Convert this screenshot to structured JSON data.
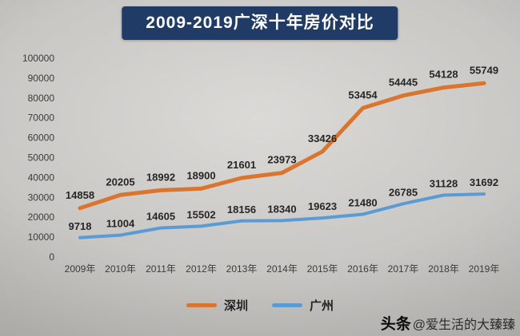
{
  "title": "2009-2019广深十年房价对比",
  "chart_data": {
    "type": "line",
    "title": "2009-2019广深十年房价对比",
    "categories": [
      "2009年",
      "2010年",
      "2011年",
      "2012年",
      "2013年",
      "2014年",
      "2015年",
      "2016年",
      "2017年",
      "2018年",
      "2019年"
    ],
    "series": [
      {
        "name": "深圳",
        "color": "#d9752f",
        "values": [
          14858,
          20205,
          18992,
          18900,
          21601,
          23973,
          33426,
          53454,
          54445,
          54128,
          55749
        ]
      },
      {
        "name": "广州",
        "color": "#5b9bd5",
        "values": [
          9718,
          11004,
          14605,
          15502,
          18156,
          18340,
          19623,
          21480,
          26785,
          31128,
          31692
        ]
      }
    ],
    "xlabel": "",
    "ylabel": "",
    "ylim": [
      0,
      100000
    ],
    "ytick_step": 10000,
    "grid": false,
    "stacked": true,
    "legend_position": "bottom",
    "data_labels": true
  },
  "legend": {
    "items": [
      {
        "label": "深圳",
        "color": "#d9752f"
      },
      {
        "label": "广州",
        "color": "#5b9bd5"
      }
    ]
  },
  "watermark": {
    "brand": "头条",
    "text": "@爱生活的大臻臻"
  }
}
